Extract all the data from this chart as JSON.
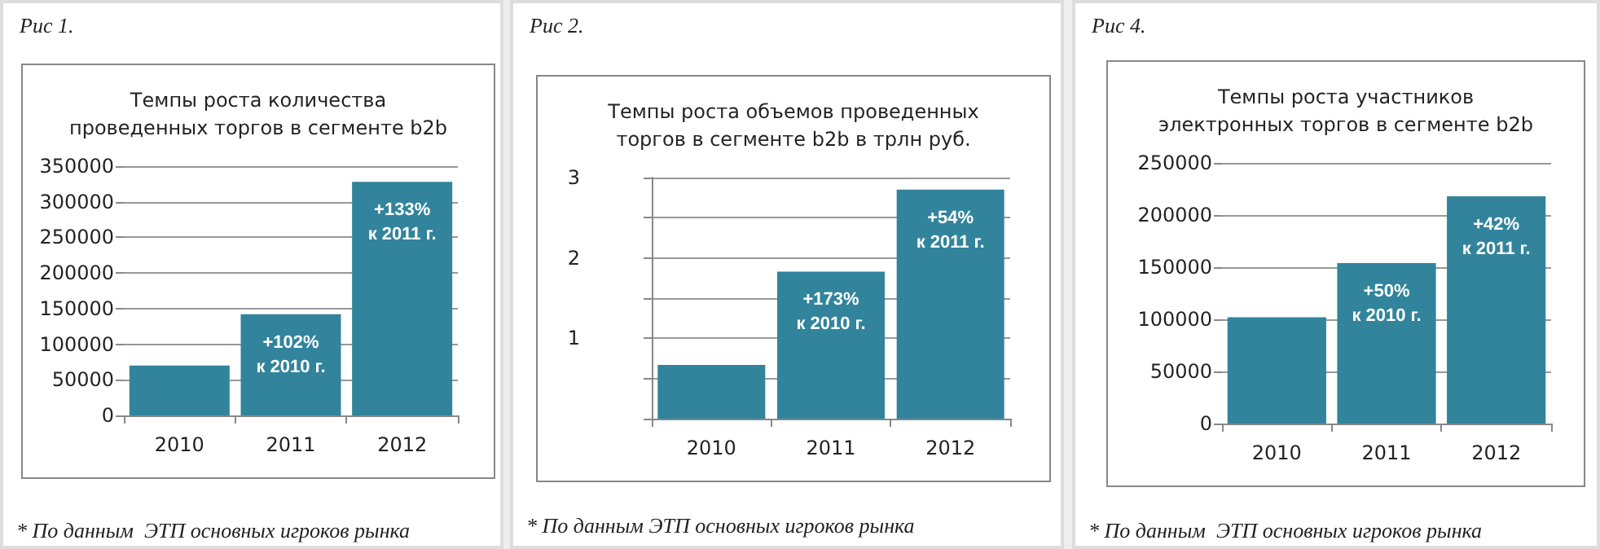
{
  "chart_data": [
    {
      "type": "bar",
      "subtitle": "Рис 1.",
      "title": "Темпы роста количества\nпроведенных торгов в сегменте b2b",
      "categories": [
        "2010",
        "2011",
        "2012"
      ],
      "values": [
        70000,
        142000,
        328000
      ],
      "color": "#31849b",
      "ylim": [
        0,
        350000
      ],
      "yticks": [
        0,
        50000,
        100000,
        150000,
        200000,
        250000,
        300000,
        350000
      ],
      "grid": "y",
      "annotations": [
        {
          "text": "+102%\nк 2010 г.",
          "x": "2011",
          "y": 142000
        },
        {
          "text": "+133%\nк 2011 г.",
          "x": "2012",
          "y": 328000
        },
        "* По данным  ЭТП основных игроков рынка"
      ]
    },
    {
      "type": "bar",
      "subtitle": "Рис 2.",
      "title": "Темпы роста объемов проведенных\nторгов в сегменте b2b в трлн руб.",
      "categories": [
        "2010",
        "2011",
        "2012"
      ],
      "values": [
        0.67,
        1.83,
        2.85
      ],
      "color": "#31849b",
      "ylim": [
        0,
        3
      ],
      "yticks": [
        {
          "value": 0,
          "label": null
        },
        {
          "value": 0.5,
          "label": null
        },
        1,
        {
          "value": 1.5,
          "label": null
        },
        2,
        {
          "value": 2.5,
          "label": null
        },
        3
      ],
      "grid": "y",
      "annotations": [
        {
          "text": "+173%\nк 2010 г.",
          "x": "2011",
          "y": 1.83
        },
        {
          "text": "+54%\nк 2011 г.",
          "x": "2012",
          "y": 2.85
        },
        "* По данным ЭТП основных игроков рынка"
      ]
    },
    {
      "type": "bar",
      "subtitle": "Рис 4.",
      "title": "Темпы роста участников\nэлектронных торгов в сегменте b2b",
      "categories": [
        "2010",
        "2011",
        "2012"
      ],
      "values": [
        102000,
        154000,
        218000
      ],
      "color": "#31849b",
      "ylim": [
        0,
        250000
      ],
      "yticks": [
        0,
        50000,
        100000,
        150000,
        200000,
        250000
      ],
      "grid": "y",
      "annotations": [
        {
          "text": "+50%\nк 2010 г.",
          "x": "2011",
          "y": 154000
        },
        {
          "text": "+42%\nк 2011 г.",
          "x": "2012",
          "y": 218000
        },
        "* По данным  ЭТП основных игроков рынка"
      ]
    }
  ]
}
